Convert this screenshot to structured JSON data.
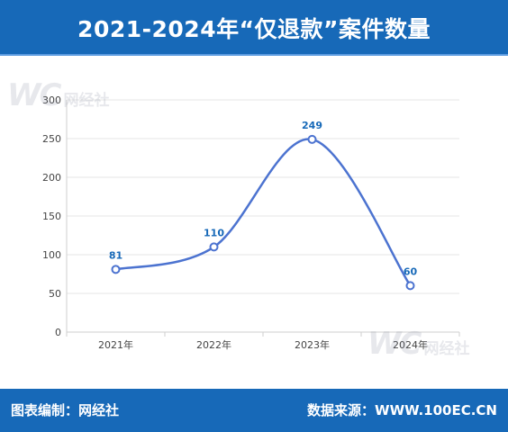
{
  "header": {
    "title": "2021-2024年“仅退款”案件数量"
  },
  "footer": {
    "left": "图表编制：网经社",
    "right": "数据来源：WWW.100EC.CN"
  },
  "watermark": {
    "logo": "WC",
    "name": "网经社",
    "url": "WWW.100EC.CN"
  },
  "colors": {
    "header_bg": "#1769b8",
    "line": "#4c73d0",
    "label": "#1769b8",
    "axis_text": "#444444"
  },
  "chart_data": {
    "type": "line",
    "title": "2021-2024年“仅退款”案件数量",
    "categories": [
      "2021年",
      "2022年",
      "2023年",
      "2024年"
    ],
    "series": [
      {
        "values": [
          81,
          110,
          249,
          60
        ]
      }
    ],
    "ylim": [
      0,
      300
    ],
    "yticks": [
      0,
      50,
      100,
      150,
      200,
      250,
      300
    ],
    "grid": true,
    "legend": "none",
    "smooth": true
  }
}
